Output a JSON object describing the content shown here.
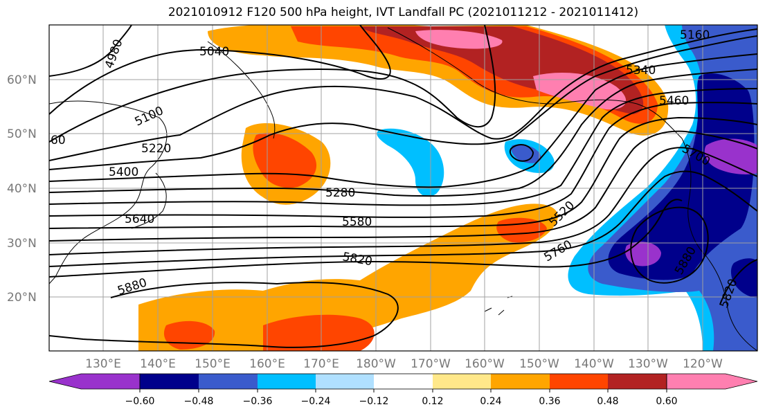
{
  "title": "2021010912 F120 500 hPa height, IVT Landfall PC (2021011212 - 2021011412)",
  "map": {
    "lat_labels": [
      "60°N",
      "50°N",
      "40°N",
      "30°N",
      "20°N"
    ],
    "lon_labels": [
      "130°E",
      "140°E",
      "150°E",
      "160°E",
      "170°E",
      "180°W",
      "170°W",
      "160°W",
      "150°W",
      "140°W",
      "130°W",
      "120°W"
    ],
    "contour_labels": [
      "4980",
      "5040",
      "5100",
      "5160",
      "5220",
      "5280",
      "5340",
      "5400",
      "5460",
      "5520",
      "5580",
      "5640",
      "5700",
      "5760",
      "5820",
      "5880",
      "5880",
      "5820",
      "60"
    ],
    "shading_colors": [
      "#9932cc",
      "#00008b",
      "#3a5bcc",
      "#00bfff",
      "#b0e0ff",
      "#ffffff",
      "#ffe88a",
      "#ffa500",
      "#ff4500",
      "#b22222",
      "#ff7fb0",
      "#ff7fb0"
    ]
  },
  "colorbar": {
    "ticks": [
      "−0.60",
      "−0.48",
      "−0.36",
      "−0.24",
      "−0.12",
      "0.12",
      "0.24",
      "0.36",
      "0.48",
      "0.60"
    ],
    "colors": [
      "#9932cc",
      "#00008b",
      "#3a5bcc",
      "#00bfff",
      "#b0e0ff",
      "#ffffff",
      "#ffe88a",
      "#ffa500",
      "#ff4500",
      "#b22222",
      "#ff7fb0"
    ]
  }
}
